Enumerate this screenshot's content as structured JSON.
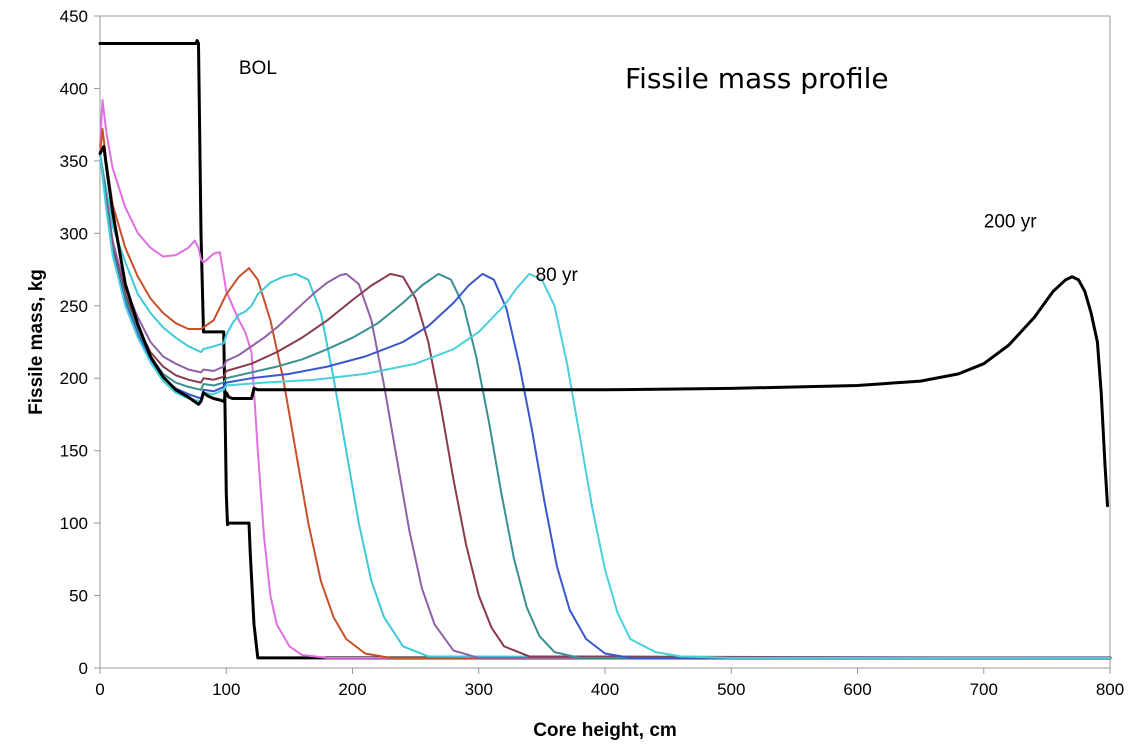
{
  "chart_data": {
    "type": "line",
    "title": "Fissile mass profile",
    "xlabel": "Core height, cm",
    "ylabel": "Fissile mass, kg",
    "xlim": [
      0,
      800
    ],
    "ylim": [
      0,
      450
    ],
    "xticks": [
      0,
      100,
      200,
      300,
      400,
      500,
      600,
      700,
      800
    ],
    "yticks": [
      0,
      50,
      100,
      150,
      200,
      250,
      300,
      350,
      400,
      450
    ],
    "grid": false,
    "legend": "none",
    "annotations": [
      {
        "text": "BOL",
        "x": 110,
        "y": 410
      },
      {
        "text": "80 yr",
        "x": 345,
        "y": 267
      },
      {
        "text": "200 yr",
        "x": 700,
        "y": 304
      }
    ],
    "series": [
      {
        "color": "#000000",
        "stroke_width": 3,
        "x": [
          0,
          76,
          77,
          78,
          80,
          82,
          83,
          98,
          99,
          100,
          101,
          102,
          118,
          119,
          122,
          125,
          800
        ],
        "y": [
          431,
          431,
          433,
          431,
          300,
          232,
          232,
          232,
          180,
          120,
          99,
          100,
          100,
          80,
          30,
          7,
          7
        ]
      },
      {
        "color": "#e070e0",
        "stroke_width": 2,
        "x": [
          0,
          2,
          5,
          10,
          20,
          30,
          40,
          50,
          60,
          70,
          75,
          78,
          80,
          82,
          85,
          90,
          95,
          100,
          105,
          110,
          115,
          120,
          125,
          130,
          135,
          140,
          150,
          160,
          170,
          180,
          200,
          230,
          800
        ],
        "y": [
          360,
          392,
          370,
          345,
          318,
          300,
          290,
          284,
          285,
          290,
          295,
          290,
          282,
          280,
          282,
          286,
          287,
          260,
          250,
          240,
          232,
          218,
          150,
          90,
          50,
          30,
          15,
          9,
          8,
          7,
          7,
          7,
          7
        ]
      },
      {
        "color": "#c8502a",
        "stroke_width": 2,
        "x": [
          0,
          2,
          5,
          10,
          20,
          30,
          40,
          50,
          60,
          70,
          80,
          90,
          100,
          110,
          118,
          125,
          135,
          145,
          155,
          165,
          175,
          185,
          195,
          210,
          230,
          800
        ],
        "y": [
          355,
          372,
          350,
          320,
          290,
          270,
          255,
          245,
          238,
          234,
          234,
          240,
          258,
          270,
          276,
          268,
          240,
          200,
          150,
          100,
          60,
          35,
          20,
          10,
          7,
          7
        ]
      },
      {
        "color": "#3ec8d8",
        "stroke_width": 2,
        "x": [
          0,
          5,
          10,
          20,
          30,
          40,
          50,
          60,
          70,
          80,
          82,
          90,
          98,
          100,
          105,
          110,
          115,
          120,
          125,
          135,
          145,
          155,
          165,
          175,
          185,
          195,
          205,
          215,
          225,
          240,
          260,
          800
        ],
        "y": [
          355,
          330,
          305,
          280,
          258,
          245,
          235,
          228,
          222,
          218,
          220,
          222,
          224,
          230,
          238,
          244,
          246,
          250,
          258,
          266,
          270,
          272,
          268,
          245,
          200,
          150,
          100,
          60,
          35,
          15,
          8,
          7
        ]
      },
      {
        "color": "#9060a8",
        "stroke_width": 2,
        "x": [
          0,
          5,
          10,
          20,
          30,
          40,
          50,
          60,
          70,
          80,
          82,
          90,
          98,
          100,
          110,
          120,
          130,
          140,
          150,
          160,
          170,
          180,
          190,
          195,
          205,
          215,
          225,
          235,
          245,
          255,
          265,
          280,
          300,
          800
        ],
        "y": [
          355,
          325,
          295,
          262,
          242,
          225,
          215,
          210,
          206,
          204,
          206,
          205,
          208,
          212,
          216,
          222,
          228,
          235,
          243,
          251,
          259,
          266,
          271,
          272,
          265,
          240,
          195,
          145,
          95,
          55,
          30,
          12,
          7,
          7
        ]
      },
      {
        "color": "#8a3a4a",
        "stroke_width": 2,
        "x": [
          0,
          5,
          10,
          20,
          30,
          40,
          50,
          60,
          70,
          80,
          82,
          90,
          98,
          100,
          120,
          140,
          160,
          180,
          200,
          215,
          230,
          240,
          250,
          260,
          270,
          280,
          290,
          300,
          310,
          320,
          340,
          800
        ],
        "y": [
          355,
          322,
          290,
          258,
          235,
          218,
          208,
          202,
          199,
          197,
          200,
          199,
          201,
          205,
          210,
          218,
          228,
          240,
          254,
          264,
          272,
          270,
          255,
          225,
          180,
          130,
          85,
          50,
          28,
          15,
          8,
          7
        ]
      },
      {
        "color": "#3a9090",
        "stroke_width": 2,
        "x": [
          0,
          5,
          10,
          20,
          30,
          40,
          50,
          60,
          70,
          80,
          82,
          90,
          98,
          100,
          120,
          140,
          160,
          180,
          200,
          220,
          240,
          255,
          268,
          278,
          288,
          298,
          308,
          318,
          328,
          338,
          348,
          360,
          380,
          800
        ],
        "y": [
          355,
          320,
          288,
          255,
          232,
          215,
          203,
          197,
          194,
          192,
          196,
          195,
          197,
          200,
          204,
          208,
          213,
          220,
          228,
          238,
          252,
          264,
          272,
          268,
          250,
          215,
          170,
          120,
          75,
          42,
          22,
          11,
          7,
          7
        ]
      },
      {
        "color": "#3a56d0",
        "stroke_width": 2,
        "x": [
          0,
          5,
          10,
          20,
          30,
          40,
          50,
          60,
          70,
          80,
          82,
          90,
          98,
          100,
          120,
          150,
          180,
          210,
          240,
          260,
          280,
          292,
          303,
          312,
          322,
          332,
          342,
          352,
          362,
          372,
          385,
          400,
          420,
          800
        ],
        "y": [
          355,
          318,
          286,
          252,
          230,
          213,
          200,
          193,
          189,
          186,
          192,
          191,
          194,
          197,
          200,
          203,
          208,
          215,
          225,
          236,
          252,
          264,
          272,
          268,
          248,
          210,
          165,
          115,
          70,
          40,
          20,
          10,
          7,
          7
        ]
      },
      {
        "color": "#48d0dc",
        "stroke_width": 2,
        "x": [
          0,
          5,
          10,
          20,
          30,
          40,
          50,
          60,
          70,
          80,
          82,
          90,
          98,
          100,
          130,
          170,
          210,
          250,
          280,
          300,
          320,
          330,
          340,
          350,
          360,
          370,
          380,
          390,
          400,
          410,
          420,
          440,
          460,
          500,
          800
        ],
        "y": [
          355,
          317,
          285,
          250,
          228,
          211,
          198,
          190,
          186,
          184,
          190,
          189,
          192,
          195,
          197,
          199,
          203,
          210,
          220,
          232,
          250,
          262,
          272,
          268,
          250,
          210,
          160,
          110,
          68,
          38,
          20,
          11,
          8,
          7,
          7
        ]
      },
      {
        "color": "#000000",
        "stroke_width": 3,
        "x": [
          0,
          3,
          6,
          10,
          20,
          30,
          40,
          50,
          60,
          70,
          78,
          80,
          82,
          85,
          90,
          95,
          98,
          100,
          102,
          105,
          110,
          115,
          120,
          122,
          125,
          200,
          300,
          400,
          500,
          600,
          650,
          680,
          700,
          720,
          740,
          755,
          765,
          770,
          775,
          780,
          785,
          790,
          793,
          796,
          798
        ],
        "y": [
          355,
          360,
          340,
          315,
          265,
          237,
          215,
          201,
          192,
          187,
          182,
          184,
          190,
          188,
          186,
          185,
          184,
          190,
          187,
          186,
          186,
          186,
          186,
          193,
          192,
          192,
          192,
          192,
          193,
          195,
          198,
          203,
          210,
          223,
          242,
          260,
          268,
          270,
          268,
          260,
          245,
          225,
          190,
          140,
          112
        ]
      }
    ]
  }
}
